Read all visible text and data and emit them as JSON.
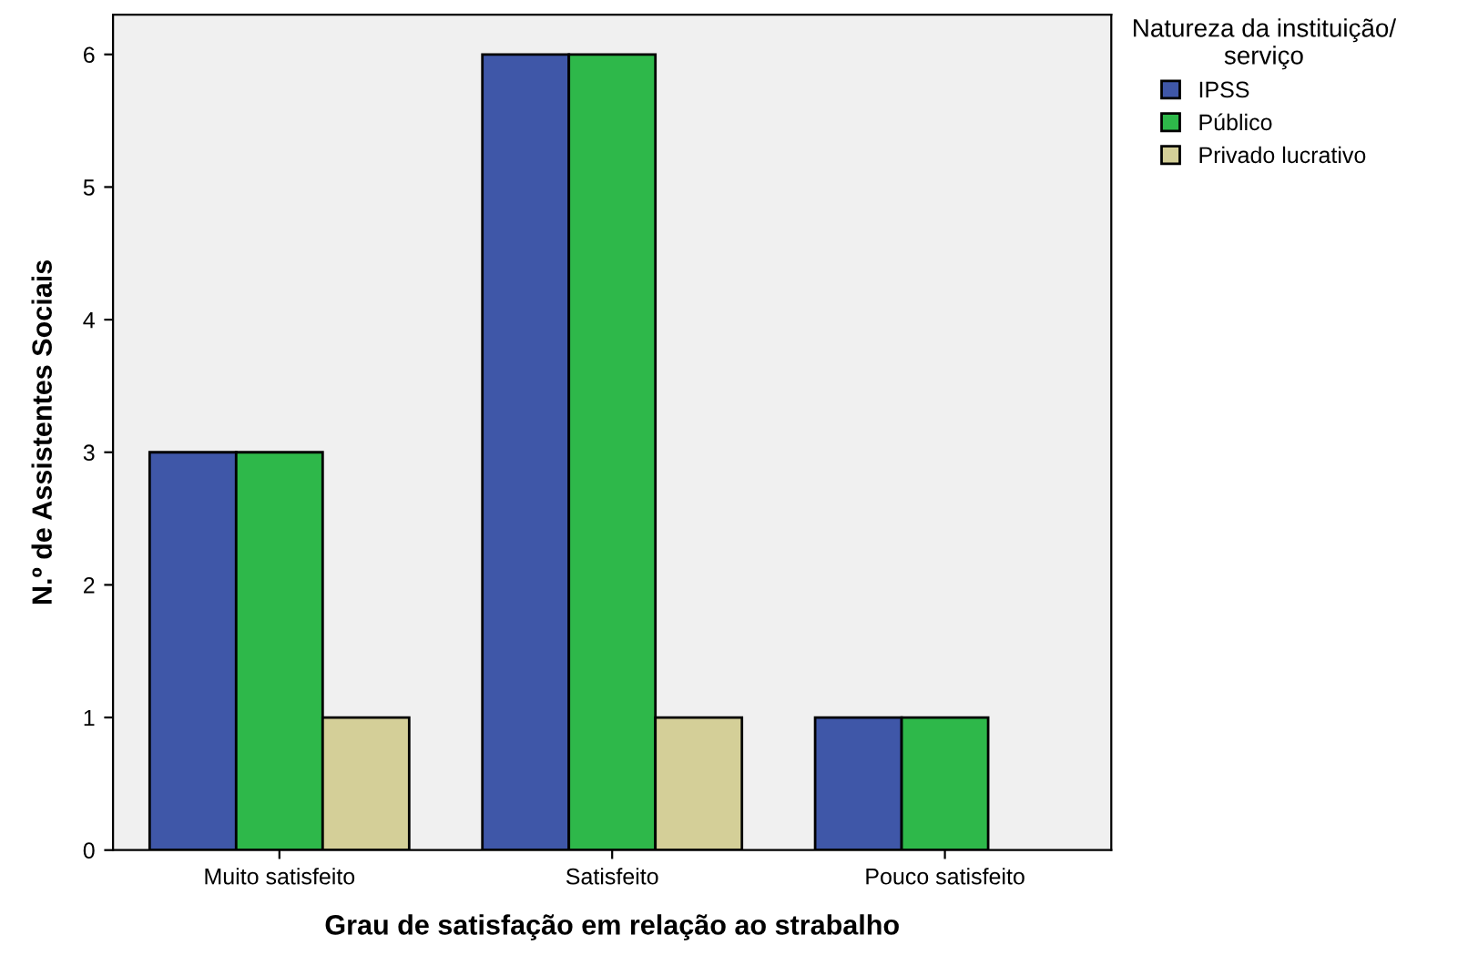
{
  "chart_data": {
    "type": "bar",
    "xlabel": "Grau de satisfação em relação ao strabalho",
    "ylabel": "N.º de Assistentes Sociais",
    "legend_title": "Natureza da instituição/serviço",
    "categories": [
      "Muito satisfeito",
      "Satisfeito",
      "Pouco satisfeito"
    ],
    "series": [
      {
        "name": "IPSS",
        "color": "#3f57a8",
        "values": [
          3,
          6,
          1
        ]
      },
      {
        "name": "Público",
        "color": "#2eb84a",
        "values": [
          3,
          6,
          1
        ]
      },
      {
        "name": "Privado lucrativo",
        "color": "#d4cf98",
        "values": [
          1,
          1,
          null
        ]
      }
    ],
    "ylim": [
      0,
      6.3
    ],
    "yticks": [
      0,
      1,
      2,
      3,
      4,
      5,
      6
    ],
    "grid": false,
    "legend": "top right"
  }
}
